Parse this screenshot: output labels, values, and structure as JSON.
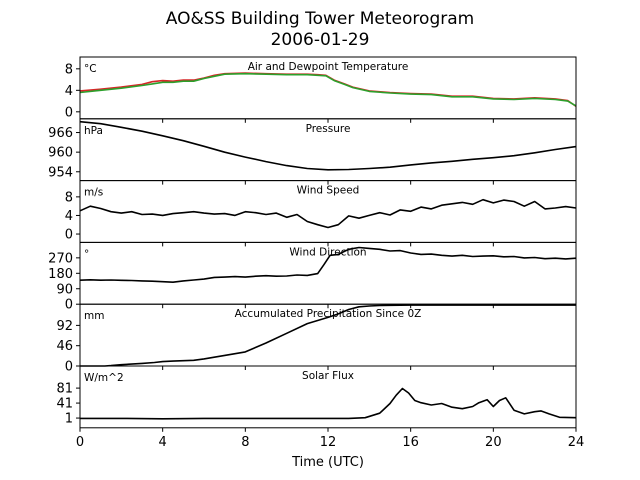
{
  "title": [
    "AO&SS Building Tower Meteorogram",
    "2006-01-29"
  ],
  "xlabel": "Time (UTC)",
  "chart_data": [
    {
      "type": "line",
      "title": "Air and Dewpoint Temperature",
      "unit": "°C",
      "xlim": [
        0,
        24
      ],
      "ylim": [
        -1.3,
        10.2
      ],
      "yticks": [
        0,
        4,
        8
      ],
      "x": [
        0,
        1,
        2,
        3,
        3.5,
        4,
        4.5,
        5,
        5.5,
        6,
        6.5,
        7,
        8,
        9,
        10,
        11,
        11.5,
        11.9,
        12.3,
        12.8,
        13.2,
        14,
        15,
        16,
        17,
        18,
        19,
        20,
        21,
        22,
        23,
        23.6,
        24
      ],
      "series": [
        {
          "color": "#d62728",
          "values": [
            3.9,
            4.2,
            4.6,
            5.1,
            5.6,
            5.8,
            5.7,
            5.9,
            5.9,
            6.3,
            6.8,
            7.1,
            7.2,
            7.1,
            7.0,
            7.0,
            6.9,
            6.8,
            5.9,
            5.2,
            4.6,
            3.9,
            3.6,
            3.4,
            3.3,
            2.9,
            2.9,
            2.5,
            2.4,
            2.6,
            2.4,
            2.1,
            1.0
          ]
        },
        {
          "color": "#2ca02c",
          "values": [
            3.6,
            4.0,
            4.4,
            4.9,
            5.2,
            5.5,
            5.5,
            5.7,
            5.7,
            6.2,
            6.6,
            7.0,
            7.1,
            7.0,
            6.9,
            6.9,
            6.8,
            6.7,
            5.8,
            5.1,
            4.5,
            3.8,
            3.5,
            3.3,
            3.2,
            2.8,
            2.8,
            2.4,
            2.3,
            2.5,
            2.3,
            2.0,
            1.1
          ]
        }
      ]
    },
    {
      "type": "line",
      "title": "Pressure",
      "unit": "hPa",
      "xlim": [
        0,
        24
      ],
      "ylim": [
        951.3,
        970.2
      ],
      "yticks": [
        954,
        960,
        966
      ],
      "x": [
        0,
        1,
        2,
        3,
        4,
        5,
        6,
        7,
        8,
        9,
        10,
        11,
        12,
        13,
        14,
        15,
        16,
        17,
        18,
        19,
        20,
        21,
        22,
        23,
        24
      ],
      "series": [
        {
          "color": "#000000",
          "values": [
            969.3,
            968.7,
            967.6,
            966.4,
            965.0,
            963.5,
            961.8,
            960.0,
            958.5,
            957.1,
            955.9,
            955.0,
            954.6,
            954.7,
            955.0,
            955.4,
            956.1,
            956.7,
            957.2,
            957.8,
            958.3,
            958.9,
            959.8,
            960.8,
            961.7
          ]
        }
      ]
    },
    {
      "type": "line",
      "title": "Wind Speed",
      "unit": "m/s",
      "xlim": [
        0,
        24
      ],
      "ylim": [
        -1.8,
        11.5
      ],
      "yticks": [
        0,
        4,
        8
      ],
      "x": [
        0,
        0.5,
        1,
        1.5,
        2,
        2.5,
        3,
        3.5,
        4,
        4.5,
        5,
        5.5,
        6,
        6.5,
        7,
        7.5,
        8,
        8.5,
        9,
        9.5,
        10,
        10.5,
        11,
        11.5,
        12,
        12.5,
        13,
        13.5,
        14,
        14.5,
        15,
        15.5,
        16,
        16.5,
        17,
        17.5,
        18,
        18.5,
        19,
        19.5,
        20,
        20.5,
        21,
        21.5,
        22,
        22.5,
        23,
        23.5,
        24
      ],
      "series": [
        {
          "color": "#000000",
          "values": [
            5.0,
            6.0,
            5.5,
            4.8,
            4.5,
            4.8,
            4.2,
            4.3,
            4.0,
            4.4,
            4.6,
            4.8,
            4.5,
            4.3,
            4.4,
            4.0,
            4.8,
            4.6,
            4.2,
            4.5,
            3.6,
            4.2,
            2.7,
            2.0,
            1.4,
            2.0,
            3.9,
            3.4,
            4.0,
            4.6,
            4.1,
            5.2,
            4.9,
            5.8,
            5.4,
            6.2,
            6.5,
            6.8,
            6.4,
            7.4,
            6.7,
            7.3,
            7.0,
            6.0,
            7.0,
            5.4,
            5.6,
            5.9,
            5.6
          ]
        }
      ]
    },
    {
      "type": "line",
      "title": "Wind Direction",
      "unit": "°",
      "xlim": [
        0,
        24
      ],
      "ylim": [
        0,
        360
      ],
      "yticks": [
        0,
        90,
        180,
        270
      ],
      "x": [
        0,
        0.5,
        1,
        1.5,
        2,
        2.5,
        3,
        3.5,
        4,
        4.5,
        5,
        5.5,
        6,
        6.5,
        7,
        7.5,
        8,
        8.5,
        9,
        9.5,
        10,
        10.5,
        11,
        11.5,
        11.8,
        12.1,
        12.5,
        13,
        13.5,
        14,
        14.5,
        15,
        15.5,
        16,
        16.5,
        17,
        17.5,
        18,
        18.5,
        19,
        19.5,
        20,
        20.5,
        21,
        21.5,
        22,
        22.5,
        23,
        23.5,
        24
      ],
      "series": [
        {
          "color": "#000000",
          "values": [
            140,
            142,
            140,
            141,
            139,
            138,
            136,
            134,
            131,
            128,
            136,
            141,
            146,
            156,
            158,
            161,
            158,
            163,
            166,
            163,
            164,
            170,
            168,
            178,
            230,
            285,
            290,
            320,
            330,
            325,
            320,
            310,
            312,
            298,
            290,
            292,
            285,
            280,
            285,
            278,
            280,
            282,
            276,
            278,
            270,
            272,
            265,
            268,
            264,
            268
          ]
        }
      ]
    },
    {
      "type": "line",
      "title": "Accumulated Precipitation Since 0Z",
      "unit": "mm",
      "xlim": [
        0,
        24
      ],
      "ylim": [
        0,
        140
      ],
      "yticks": [
        0,
        46,
        92
      ],
      "x": [
        0,
        1.2,
        1.5,
        2,
        3,
        3.6,
        4,
        4.5,
        5,
        5.5,
        6,
        6.5,
        7,
        8,
        9,
        10,
        11,
        12,
        12.5,
        13,
        13.5,
        14,
        14.5,
        15,
        16,
        18,
        20,
        22,
        24
      ],
      "series": [
        {
          "color": "#000000",
          "values": [
            0,
            0,
            1,
            3,
            6,
            8,
            10,
            11,
            12,
            13,
            16,
            20,
            24,
            32,
            52,
            74,
            96,
            110,
            118,
            128,
            134,
            136,
            137,
            137.5,
            138,
            138,
            138,
            138,
            138
          ]
        }
      ]
    },
    {
      "type": "line",
      "title": "Solar Flux",
      "unit": "W/m^2",
      "xlim": [
        0,
        24
      ],
      "ylim": [
        -25,
        140
      ],
      "yticks": [
        1,
        41,
        81
      ],
      "x": [
        0,
        2,
        4,
        6,
        8,
        10,
        12,
        13,
        13.8,
        14.5,
        15,
        15.3,
        15.6,
        15.9,
        16.2,
        16.5,
        17,
        17.5,
        18,
        18.5,
        19,
        19.3,
        19.7,
        20,
        20.3,
        20.6,
        21,
        21.5,
        22,
        22.3,
        22.7,
        23.2,
        24
      ],
      "series": [
        {
          "color": "#000000",
          "values": [
            0,
            0,
            -1,
            0,
            0,
            0,
            0,
            0,
            2,
            14,
            40,
            62,
            80,
            68,
            48,
            42,
            36,
            40,
            30,
            26,
            32,
            42,
            50,
            32,
            48,
            55,
            22,
            12,
            18,
            20,
            12,
            3,
            2
          ]
        }
      ]
    }
  ]
}
